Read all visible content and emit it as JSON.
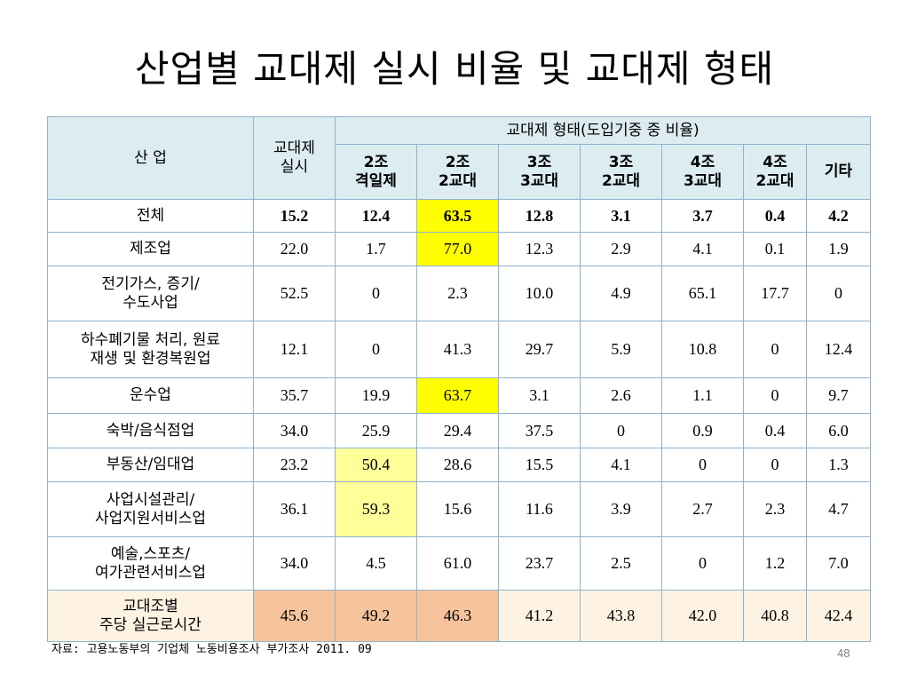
{
  "title": "산업별 교대제 실시 비율 및 교대제 형태",
  "header": {
    "industry": "산 업",
    "rate_line1": "교대제",
    "rate_line2": "실시",
    "type_group": "교대제 형태(도입기중 중 비율)",
    "types": [
      {
        "line1": "2조",
        "line2": "격일제"
      },
      {
        "line1": "2조",
        "line2": "2교대"
      },
      {
        "line1": "3조",
        "line2": "3교대"
      },
      {
        "line1": "3조",
        "line2": "2교대"
      },
      {
        "line1": "4조",
        "line2": "3교대"
      },
      {
        "line1": "4조",
        "line2": "2교대"
      },
      {
        "line1": "기타",
        "line2": ""
      }
    ]
  },
  "rows": [
    {
      "industry": "전체",
      "l2": "",
      "values": [
        "15.2",
        "12.4",
        "63.5",
        "12.8",
        "3.1",
        "3.7",
        "0.4",
        "4.2"
      ]
    },
    {
      "industry": "제조업",
      "l2": "",
      "values": [
        "22.0",
        "1.7",
        "77.0",
        "12.3",
        "2.9",
        "4.1",
        "0.1",
        "1.9"
      ]
    },
    {
      "industry": "전기가스, 증기/",
      "l2": "수도사업",
      "values": [
        "52.5",
        "0",
        "2.3",
        "10.0",
        "4.9",
        "65.1",
        "17.7",
        "0"
      ]
    },
    {
      "industry": "하수폐기물 처리, 원료",
      "l2": "재생 및 환경복원업",
      "values": [
        "12.1",
        "0",
        "41.3",
        "29.7",
        "5.9",
        "10.8",
        "0",
        "12.4"
      ]
    },
    {
      "industry": "운수업",
      "l2": "",
      "values": [
        "35.7",
        "19.9",
        "63.7",
        "3.1",
        "2.6",
        "1.1",
        "0",
        "9.7"
      ]
    },
    {
      "industry": "숙박/음식점업",
      "l2": "",
      "values": [
        "34.0",
        "25.9",
        "29.4",
        "37.5",
        "0",
        "0.9",
        "0.4",
        "6.0"
      ]
    },
    {
      "industry": "부동산/임대업",
      "l2": "",
      "values": [
        "23.2",
        "50.4",
        "28.6",
        "15.5",
        "4.1",
        "0",
        "0",
        "1.3"
      ]
    },
    {
      "industry": "사업시설관리/",
      "l2": "사업지원서비스업",
      "values": [
        "36.1",
        "59.3",
        "15.6",
        "11.6",
        "3.9",
        "2.7",
        "2.3",
        "4.7"
      ]
    },
    {
      "industry": "예술,스포츠/",
      "l2": "여가관련서비스업",
      "values": [
        "34.0",
        "4.5",
        "61.0",
        "23.7",
        "2.5",
        "0",
        "1.2",
        "7.0"
      ]
    }
  ],
  "hours_row": {
    "line1": "교대조별",
    "line2": "주당 실근로시간",
    "values": [
      "45.6",
      "49.2",
      "46.3",
      "41.2",
      "43.8",
      "42.0",
      "40.8",
      "42.4"
    ]
  },
  "highlight_colors": {
    "strong": "#ffff00",
    "light": "#ffff99",
    "orange": "#f7c39c",
    "cream": "#fef3e2",
    "header": "#dcecf1"
  },
  "footer": "자료: 고용노동부의 기업체 노동비용조사 부가조사 2011. 09",
  "page_number": "48"
}
